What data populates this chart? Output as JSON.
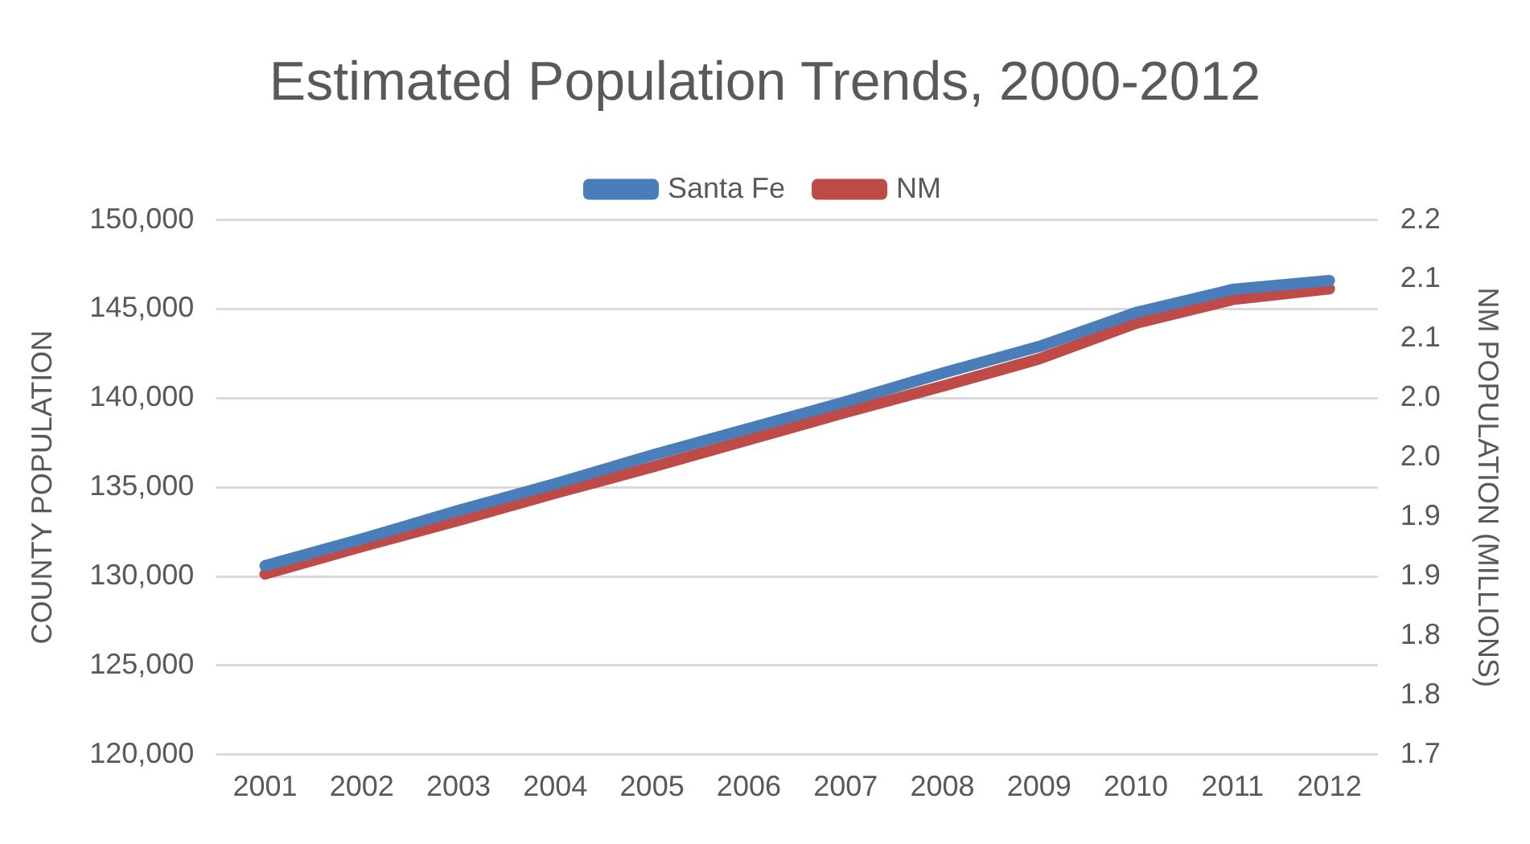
{
  "chart_data": {
    "type": "line",
    "title": "Estimated Population Trends, 2000-2012",
    "ylabel": "COUNTY POPULATION",
    "y2label": "NM POPULATION (MILLIONS)",
    "categories": [
      "2001",
      "2002",
      "2003",
      "2004",
      "2005",
      "2006",
      "2007",
      "2008",
      "2009",
      "2010",
      "2011",
      "2012"
    ],
    "series": [
      {
        "name": "Santa Fe",
        "color": "#4a7ebb",
        "values": [
          130600,
          132100,
          133700,
          135200,
          136800,
          138300,
          139800,
          141400,
          142900,
          144800,
          146100,
          146600
        ]
      },
      {
        "name": "NM",
        "color": "#be4b48",
        "axis": "y2",
        "values": [
          1.852,
          1.875,
          1.897,
          1.92,
          1.942,
          1.965,
          1.988,
          2.01,
          2.033,
          2.063,
          2.083,
          2.092
        ]
      }
    ],
    "ylim": [
      120000,
      150000
    ],
    "yticks": [
      {
        "value": 120000,
        "label": "120,000"
      },
      {
        "value": 125000,
        "label": "125,000"
      },
      {
        "value": 130000,
        "label": "130,000"
      },
      {
        "value": 135000,
        "label": "135,000"
      },
      {
        "value": 140000,
        "label": "140,000"
      },
      {
        "value": 145000,
        "label": "145,000"
      },
      {
        "value": 150000,
        "label": "150,000"
      }
    ],
    "y2lim": [
      1.7,
      2.15
    ],
    "y2ticks": [
      {
        "value": 1.7,
        "label": "1.7"
      },
      {
        "value": 1.75,
        "label": "1.8"
      },
      {
        "value": 1.8,
        "label": "1.8"
      },
      {
        "value": 1.85,
        "label": "1.9"
      },
      {
        "value": 1.9,
        "label": "1.9"
      },
      {
        "value": 1.95,
        "label": "2.0"
      },
      {
        "value": 2.0,
        "label": "2.0"
      },
      {
        "value": 2.05,
        "label": "2.1"
      },
      {
        "value": 2.1,
        "label": "2.1"
      },
      {
        "value": 2.15,
        "label": "2.2"
      }
    ],
    "grid": "y",
    "legend": "top",
    "marker": "none",
    "line_style": "solid"
  }
}
